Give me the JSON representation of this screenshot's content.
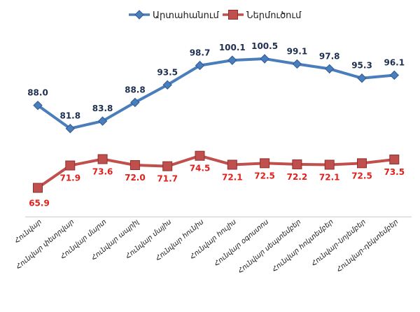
{
  "chart_data": {
    "type": "line",
    "title": "",
    "xlabel": "",
    "ylabel": "",
    "grid": false,
    "legend_position": "top",
    "categories": [
      "Հունվար",
      "Հունվար փետրվար",
      "Հունվար մարտ",
      "Հունվար ապրիլ",
      "Հունվար մայիս",
      "Հունվար հունիս",
      "Հունվար հուլիս",
      "Հունվար օգոստոս",
      "Հունվար սեպտեմբեր",
      "Հունվար հոկտեմբեր",
      "Հունվար-նոյեմբեր",
      "Հունվար-դեկտեմբեր"
    ],
    "ylim": [
      60,
      105
    ],
    "series": [
      {
        "name": "Արտահանում",
        "color": "#4A7EBB",
        "marker": "diamond",
        "values": [
          88.0,
          81.8,
          83.8,
          88.8,
          93.5,
          98.7,
          100.1,
          100.5,
          99.1,
          97.8,
          95.3,
          96.1
        ],
        "labels": [
          "88.0",
          "81.8",
          "83.8",
          "88.8",
          "93.5",
          "98.7",
          "100.1",
          "100.5",
          "99.1",
          "97.8",
          "95.3",
          "96.1"
        ],
        "label_color": "#1F2F4F"
      },
      {
        "name": "Ներմուծում",
        "color": "#C0504D",
        "marker": "square",
        "values": [
          65.9,
          71.9,
          73.6,
          72.0,
          71.7,
          74.5,
          72.1,
          72.5,
          72.2,
          72.1,
          72.5,
          73.5
        ],
        "labels": [
          "65.9",
          "71.9",
          "73.6",
          "72.0",
          "71.7",
          "74.5",
          "72.1",
          "72.5",
          "72.2",
          "72.1",
          "72.5",
          "73.5"
        ],
        "label_color": "#E0201B"
      }
    ]
  }
}
